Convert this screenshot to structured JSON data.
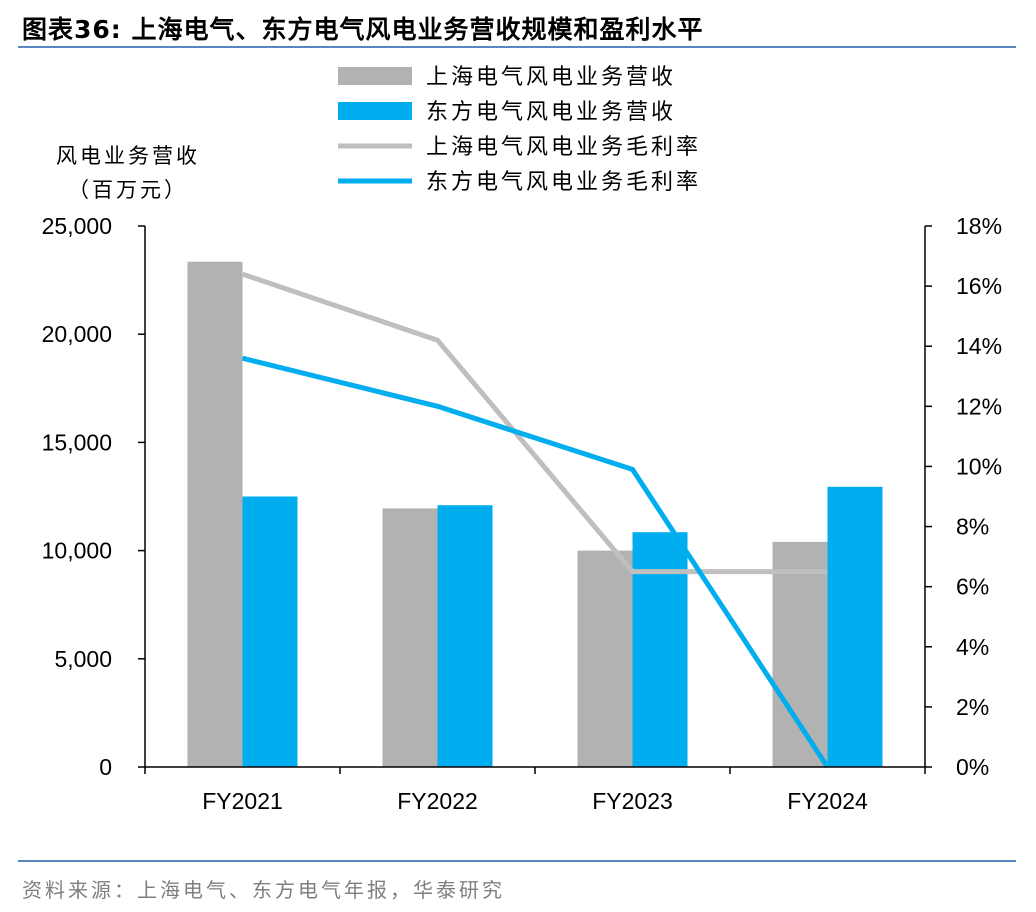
{
  "figure": {
    "title": "图表36:  上海电气、东方电气风电业务营收规模和盈利水平",
    "source": "资料来源：上海电气、东方电气年报，华泰研究"
  },
  "chart_data": {
    "type": "bar",
    "categories": [
      "FY2021",
      "FY2022",
      "FY2023",
      "FY2024"
    ],
    "ylabel_left": [
      "风电业务营收",
      "（百万元）"
    ],
    "ylim_left": [
      0,
      25000
    ],
    "yticks_left": [
      "0",
      "5,000",
      "10,000",
      "15,000",
      "20,000",
      "25,000"
    ],
    "ylim_right": [
      0,
      18
    ],
    "yticks_right": [
      "0%",
      "2%",
      "4%",
      "6%",
      "8%",
      "10%",
      "12%",
      "14%",
      "16%",
      "18%"
    ],
    "legend_position": "top-center",
    "series": [
      {
        "name": "上海电气风电业务营收",
        "kind": "bar",
        "axis": "left",
        "color": "#b2b2b2",
        "values": [
          23350,
          11950,
          10000,
          10400
        ]
      },
      {
        "name": "东方电气风电业务营收",
        "kind": "bar",
        "axis": "left",
        "color": "#00aeef",
        "values": [
          12500,
          12100,
          10850,
          12950
        ]
      },
      {
        "name": "上海电气风电业务毛利率",
        "kind": "line",
        "axis": "right",
        "color": "#bfbfbf",
        "values": [
          16.4,
          14.2,
          6.5,
          6.5
        ]
      },
      {
        "name": "东方电气风电业务毛利率",
        "kind": "line",
        "axis": "right",
        "color": "#00aeef",
        "values": [
          13.6,
          12.0,
          9.9,
          0.0
        ]
      }
    ]
  }
}
